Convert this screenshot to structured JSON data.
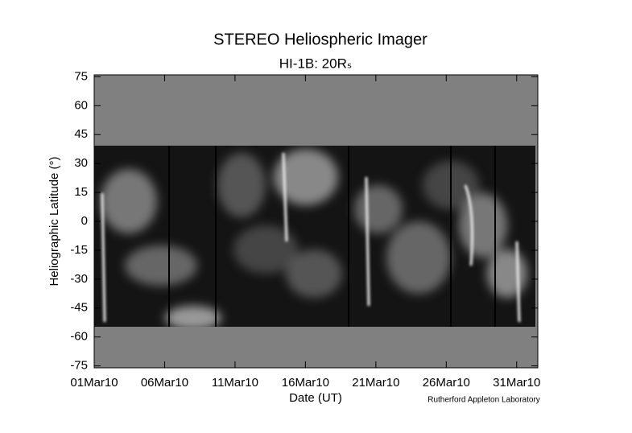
{
  "chart_data": {
    "type": "image",
    "title": "STEREO Heliospheric Imager",
    "subtitle": "HI-1B: 20Rₛ",
    "xlabel": "Date (UT)",
    "ylabel": "Heliographic Latitude (°)",
    "credit": "Rutherford Appleton Laboratory",
    "xlim": [
      1,
      32.5
    ],
    "xticks": [
      {
        "value": 1,
        "label": "01Mar10"
      },
      {
        "value": 6,
        "label": "06Mar10"
      },
      {
        "value": 11,
        "label": "11Mar10"
      },
      {
        "value": 16,
        "label": "16Mar10"
      },
      {
        "value": 21,
        "label": "21Mar10"
      },
      {
        "value": 26,
        "label": "26Mar10"
      },
      {
        "value": 31,
        "label": "31Mar10"
      }
    ],
    "ylim": [
      -76,
      76
    ],
    "yticks": [
      75,
      60,
      45,
      30,
      15,
      0,
      -15,
      -30,
      -45,
      -60,
      -75
    ]
  }
}
